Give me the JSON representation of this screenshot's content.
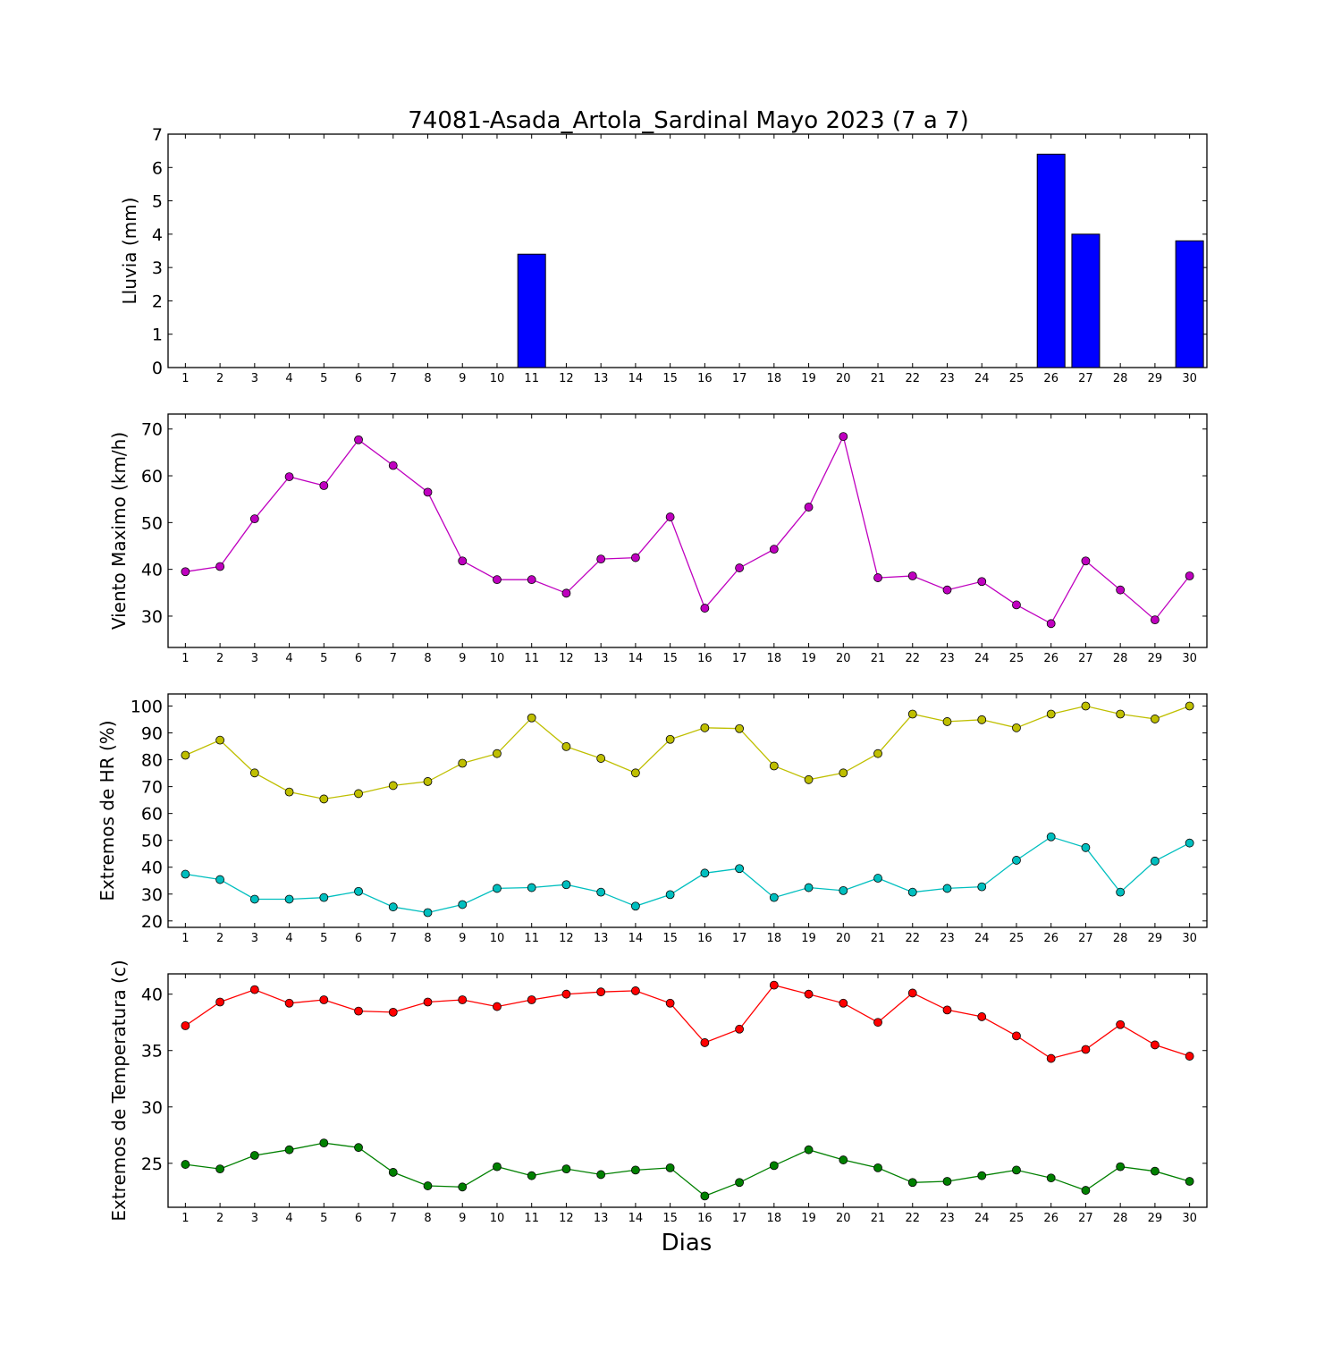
{
  "title": "74081-Asada_Artola_Sardinal Mayo 2023  (7 a 7)",
  "xlabel": "Dias",
  "chart_data": [
    {
      "type": "bar",
      "ylabel": "Lluvia (mm)",
      "ylim": [
        0,
        7
      ],
      "yticks": [
        0,
        1,
        2,
        3,
        4,
        5,
        6,
        7
      ],
      "xlim": [
        0.5,
        30.5
      ],
      "categories": [
        "1",
        "2",
        "3",
        "4",
        "5",
        "6",
        "7",
        "8",
        "9",
        "10",
        "11",
        "12",
        "13",
        "14",
        "15",
        "16",
        "17",
        "18",
        "19",
        "20",
        "21",
        "22",
        "23",
        "24",
        "25",
        "26",
        "27",
        "28",
        "29",
        "30"
      ],
      "series": [
        {
          "color": "#0000ff",
          "values": [
            0,
            0,
            0,
            0,
            0,
            0,
            0,
            0,
            0,
            0,
            3.4,
            0,
            0,
            0,
            0,
            0,
            0,
            0,
            0,
            0,
            0,
            0,
            0,
            0,
            0,
            6.4,
            4.0,
            0,
            0,
            3.8
          ]
        }
      ]
    },
    {
      "type": "line",
      "ylabel": "Viento Maximo (km/h)",
      "ylim": [
        23.3,
        73.2
      ],
      "yticks": [
        30,
        40,
        50,
        60,
        70
      ],
      "x": [
        1,
        2,
        3,
        4,
        5,
        6,
        7,
        8,
        9,
        10,
        11,
        12,
        13,
        14,
        15,
        16,
        17,
        18,
        19,
        20,
        21,
        22,
        23,
        24,
        25,
        26,
        27,
        28,
        29,
        30
      ],
      "series": [
        {
          "color": "#bf00bf",
          "values": [
            39.5,
            40.6,
            50.8,
            59.8,
            57.9,
            67.7,
            62.2,
            56.5,
            41.8,
            37.8,
            37.8,
            34.9,
            42.2,
            42.5,
            51.2,
            31.7,
            40.3,
            44.3,
            53.3,
            68.4,
            38.2,
            38.6,
            35.6,
            37.4,
            32.4,
            28.4,
            41.8,
            35.6,
            29.2,
            38.6
          ]
        }
      ]
    },
    {
      "type": "line",
      "ylabel": "Extremos de HR (%)",
      "ylim": [
        17.6,
        104.5
      ],
      "yticks": [
        20,
        30,
        40,
        50,
        60,
        70,
        80,
        90,
        100
      ],
      "x": [
        1,
        2,
        3,
        4,
        5,
        6,
        7,
        8,
        9,
        10,
        11,
        12,
        13,
        14,
        15,
        16,
        17,
        18,
        19,
        20,
        21,
        22,
        23,
        24,
        25,
        26,
        27,
        28,
        29,
        30
      ],
      "series": [
        {
          "color": "#bfbf00",
          "values": [
            81.7,
            87.3,
            75.1,
            68.0,
            65.4,
            67.4,
            70.4,
            71.9,
            78.7,
            82.3,
            95.6,
            84.9,
            80.5,
            75.1,
            87.6,
            91.9,
            91.6,
            77.7,
            72.6,
            75.1,
            82.3,
            97.0,
            94.2,
            94.9,
            91.9,
            97.0,
            100.0,
            97.0,
            95.2,
            100.0
          ]
        },
        {
          "color": "#00bfbf",
          "values": [
            37.4,
            35.4,
            28.1,
            28.1,
            28.7,
            31.0,
            25.2,
            23.1,
            26.1,
            32.1,
            32.4,
            33.5,
            30.7,
            25.5,
            29.8,
            37.8,
            39.5,
            28.7,
            32.4,
            31.3,
            35.9,
            30.7,
            32.1,
            32.7,
            42.6,
            51.3,
            47.3,
            30.7,
            42.3,
            49.0
          ]
        }
      ]
    },
    {
      "type": "line",
      "ylabel": "Extremos de Temperatura (c)",
      "ylim": [
        21.1,
        41.8
      ],
      "yticks": [
        25,
        30,
        35,
        40
      ],
      "x": [
        1,
        2,
        3,
        4,
        5,
        6,
        7,
        8,
        9,
        10,
        11,
        12,
        13,
        14,
        15,
        16,
        17,
        18,
        19,
        20,
        21,
        22,
        23,
        24,
        25,
        26,
        27,
        28,
        29,
        30
      ],
      "series": [
        {
          "color": "#ff0000",
          "values": [
            37.2,
            39.3,
            40.4,
            39.2,
            39.5,
            38.5,
            38.4,
            39.3,
            39.5,
            38.9,
            39.5,
            40.0,
            40.2,
            40.3,
            39.2,
            35.7,
            36.9,
            40.8,
            40.0,
            39.2,
            37.5,
            40.1,
            38.6,
            38.0,
            36.3,
            34.3,
            35.1,
            37.3,
            35.5,
            34.5
          ]
        },
        {
          "color": "#008000",
          "values": [
            24.9,
            24.5,
            25.7,
            26.2,
            26.8,
            26.4,
            24.2,
            23.0,
            22.9,
            24.7,
            23.9,
            24.5,
            24.0,
            24.4,
            24.6,
            22.1,
            23.3,
            24.8,
            26.2,
            25.3,
            24.6,
            23.3,
            23.4,
            23.9,
            24.4,
            23.7,
            22.6,
            24.7,
            24.3,
            23.4
          ]
        }
      ]
    }
  ]
}
